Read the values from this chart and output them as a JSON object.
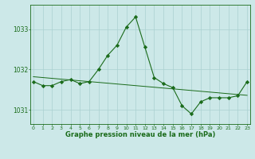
{
  "hours": [
    0,
    1,
    2,
    3,
    4,
    5,
    6,
    7,
    8,
    9,
    10,
    11,
    12,
    13,
    14,
    15,
    16,
    17,
    18,
    19,
    20,
    21,
    22,
    23
  ],
  "pressure": [
    1031.7,
    1031.6,
    1031.6,
    1031.7,
    1031.75,
    1031.65,
    1031.7,
    1032.0,
    1032.35,
    1032.6,
    1033.05,
    1033.3,
    1032.55,
    1031.8,
    1031.65,
    1031.55,
    1031.1,
    1030.9,
    1031.2,
    1031.3,
    1031.3,
    1031.3,
    1031.35,
    1031.7
  ],
  "regression": [
    1031.82,
    1031.8,
    1031.78,
    1031.76,
    1031.74,
    1031.72,
    1031.7,
    1031.68,
    1031.66,
    1031.64,
    1031.62,
    1031.6,
    1031.58,
    1031.56,
    1031.54,
    1031.52,
    1031.5,
    1031.48,
    1031.46,
    1031.44,
    1031.42,
    1031.4,
    1031.38,
    1031.36
  ],
  "line_color": "#1a6b1a",
  "bg_color": "#cce8e8",
  "grid_color": "#aad0d0",
  "text_color": "#1a6b1a",
  "xlabel": "Graphe pression niveau de la mer (hPa)",
  "ylim": [
    1030.65,
    1033.6
  ],
  "yticks": [
    1031,
    1032,
    1033
  ],
  "xticks": [
    0,
    1,
    2,
    3,
    4,
    5,
    6,
    7,
    8,
    9,
    10,
    11,
    12,
    13,
    14,
    15,
    16,
    17,
    18,
    19,
    20,
    21,
    22,
    23
  ]
}
